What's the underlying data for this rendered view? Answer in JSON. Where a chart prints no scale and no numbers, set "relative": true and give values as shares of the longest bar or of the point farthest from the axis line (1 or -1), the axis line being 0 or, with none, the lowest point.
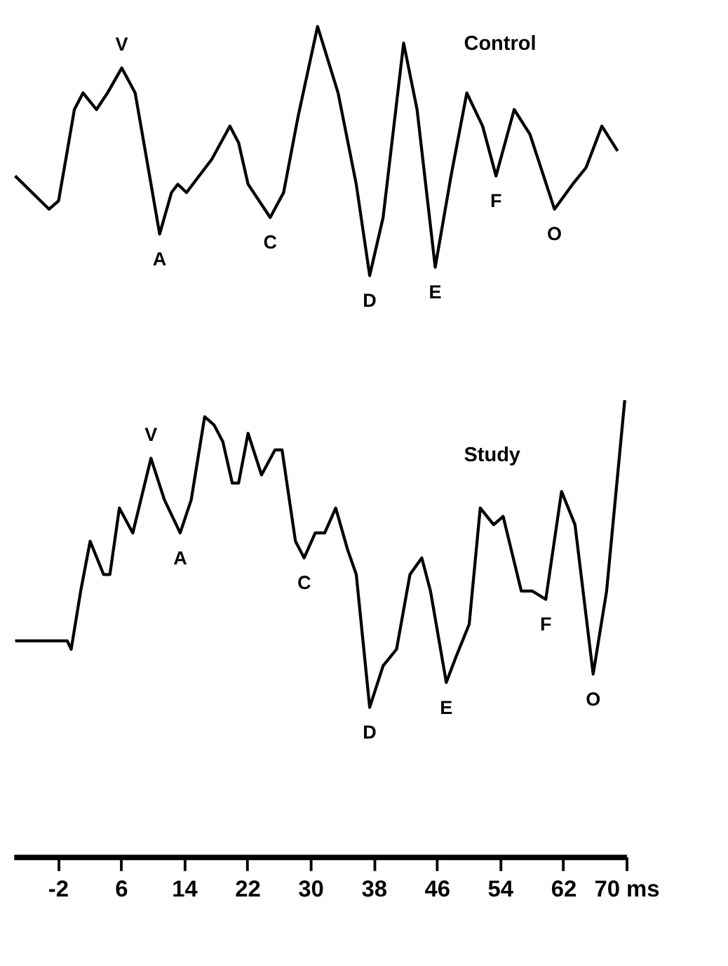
{
  "chart_data": {
    "type": "line",
    "relative": true,
    "xlim": [
      -7.6,
      70
    ],
    "tick_labels": "x",
    "grid": false,
    "marker": "none",
    "line_style": "solid",
    "xticks": [
      -2,
      6,
      14,
      22,
      30,
      38,
      46,
      54,
      62,
      {
        "value": 70,
        "label": "70 ms"
      }
    ],
    "series": [
      {
        "name": "Control",
        "color": "#000000",
        "x": [
          -7.4,
          -3.1,
          -1.9,
          -0.8,
          0.1,
          1.2,
          2.9,
          4.3,
          6.1,
          7.8,
          8.9,
          10.9,
          12.4,
          13.2,
          14.3,
          17.5,
          19.8,
          20.9,
          22.1,
          24.9,
          26.6,
          28.4,
          30.9,
          33.5,
          35.8,
          37.5,
          39.2,
          41.8,
          43.5,
          45.8,
          47.8,
          49.8,
          51.8,
          53.5,
          55.8,
          57.8,
          60.9,
          63.2,
          64.9,
          66.9,
          68.9
        ],
        "values": [
          0.82,
          0.78,
          0.79,
          0.85,
          0.9,
          0.92,
          0.9,
          0.92,
          0.95,
          0.92,
          0.86,
          0.75,
          0.8,
          0.81,
          0.8,
          0.84,
          0.88,
          0.86,
          0.81,
          0.77,
          0.8,
          0.89,
          1.0,
          0.92,
          0.81,
          0.7,
          0.77,
          0.98,
          0.9,
          0.71,
          0.82,
          0.92,
          0.88,
          0.82,
          0.9,
          0.87,
          0.78,
          0.81,
          0.83,
          0.88,
          0.85
        ]
      },
      {
        "name": "Study",
        "color": "#000000",
        "x": [
          -7.4,
          -0.8,
          -0.3,
          0.9,
          2.1,
          3.8,
          4.6,
          5.8,
          7.5,
          9.8,
          11.5,
          13.5,
          14.9,
          16.6,
          17.8,
          18.9,
          20.1,
          20.9,
          22.1,
          23.8,
          25.5,
          26.4,
          28.1,
          29.2,
          30.6,
          31.8,
          33.2,
          34.7,
          35.8,
          37.5,
          39.2,
          40.9,
          42.6,
          44.1,
          45.2,
          47.2,
          48.4,
          50.1,
          51.5,
          53.2,
          54.4,
          56.7,
          58.1,
          59.8,
          61.8,
          63.5,
          65.8,
          67.5,
          69.8
        ],
        "values": [
          0.26,
          0.26,
          0.25,
          0.32,
          0.38,
          0.34,
          0.34,
          0.42,
          0.39,
          0.48,
          0.43,
          0.39,
          0.43,
          0.53,
          0.52,
          0.5,
          0.45,
          0.45,
          0.51,
          0.46,
          0.49,
          0.49,
          0.38,
          0.36,
          0.39,
          0.39,
          0.42,
          0.37,
          0.34,
          0.18,
          0.23,
          0.25,
          0.34,
          0.36,
          0.32,
          0.21,
          0.24,
          0.28,
          0.42,
          0.4,
          0.41,
          0.32,
          0.32,
          0.31,
          0.44,
          0.4,
          0.22,
          0.32,
          0.55
        ]
      }
    ],
    "annotations": [
      {
        "text": "V",
        "x": 6.1,
        "y": 0.95
      },
      {
        "text": "A",
        "x": 10.9,
        "y": 0.75
      },
      {
        "text": "C",
        "x": 24.9,
        "y": 0.77
      },
      {
        "text": "D",
        "x": 37.5,
        "y": 0.7
      },
      {
        "text": "E",
        "x": 45.8,
        "y": 0.71
      },
      {
        "text": "F",
        "x": 53.5,
        "y": 0.82
      },
      {
        "text": "O",
        "x": 60.9,
        "y": 0.78
      },
      {
        "text": "V",
        "x": 9.8,
        "y": 0.48
      },
      {
        "text": "A",
        "x": 13.5,
        "y": 0.39
      },
      {
        "text": "C",
        "x": 29.2,
        "y": 0.36
      },
      {
        "text": "D",
        "x": 37.5,
        "y": 0.18
      },
      {
        "text": "E",
        "x": 47.2,
        "y": 0.21
      },
      {
        "text": "F",
        "x": 59.8,
        "y": 0.31
      },
      {
        "text": "O",
        "x": 65.8,
        "y": 0.22
      }
    ]
  }
}
